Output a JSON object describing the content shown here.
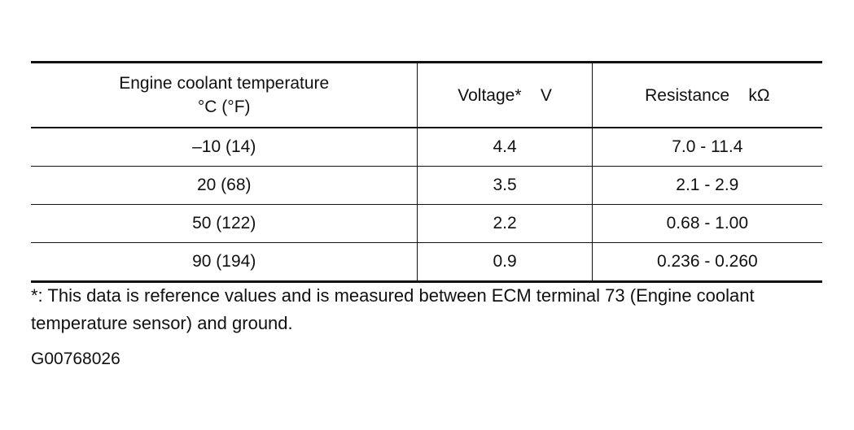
{
  "table": {
    "header": [
      [
        "Engine coolant temperature",
        "°C (°F)"
      ],
      [
        "Voltage*    V"
      ],
      [
        "Resistance    kΩ"
      ]
    ],
    "rows": [
      [
        "–10 (14)",
        "4.4",
        "7.0 - 11.4"
      ],
      [
        "20 (68)",
        "3.5",
        "2.1 - 2.9"
      ],
      [
        "50 (122)",
        "2.2",
        "0.68 - 1.00"
      ],
      [
        "90 (194)",
        "0.9",
        "0.236 - 0.260"
      ]
    ]
  },
  "footnote": "*: This data is reference values and is measured between ECM terminal 73 (Engine coolant temperature sensor) and ground.",
  "figure_id": "G00768026"
}
